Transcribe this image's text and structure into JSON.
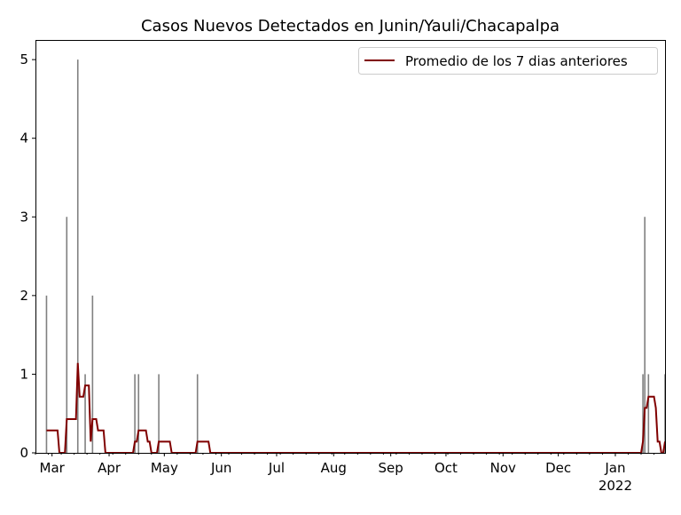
{
  "chart_data": {
    "type": "bar",
    "title": "Casos Nuevos Detectados en Junin/Yauli/Chacapalpa",
    "xlabel": "",
    "ylabel": "",
    "start_date": "2021-02-26",
    "end_date": "2022-01-28",
    "xlim": [
      "2021-02-20",
      "2022-01-28"
    ],
    "ylim": [
      0,
      5.25
    ],
    "yticks": [
      0,
      1,
      2,
      3,
      4,
      5
    ],
    "xticks": [
      {
        "date": "2021-03-01",
        "label": "Mar"
      },
      {
        "date": "2021-04-01",
        "label": "Apr"
      },
      {
        "date": "2021-05-01",
        "label": "May"
      },
      {
        "date": "2021-06-01",
        "label": "Jun"
      },
      {
        "date": "2021-07-01",
        "label": "Jul"
      },
      {
        "date": "2021-08-01",
        "label": "Aug"
      },
      {
        "date": "2021-09-01",
        "label": "Sep"
      },
      {
        "date": "2021-10-01",
        "label": "Oct"
      },
      {
        "date": "2021-11-01",
        "label": "Nov"
      },
      {
        "date": "2021-12-01",
        "label": "Dec"
      },
      {
        "date": "2022-01-01",
        "label": "Jan",
        "sublabel": "2022"
      }
    ],
    "daily_cases_nonzero": [
      {
        "date": "2021-02-26",
        "value": 2
      },
      {
        "date": "2021-03-09",
        "value": 3
      },
      {
        "date": "2021-03-15",
        "value": 5
      },
      {
        "date": "2021-03-19",
        "value": 1
      },
      {
        "date": "2021-03-23",
        "value": 2
      },
      {
        "date": "2021-04-15",
        "value": 1
      },
      {
        "date": "2021-04-17",
        "value": 1
      },
      {
        "date": "2021-04-28",
        "value": 1
      },
      {
        "date": "2021-05-19",
        "value": 1
      },
      {
        "date": "2022-01-16",
        "value": 1
      },
      {
        "date": "2022-01-17",
        "value": 3
      },
      {
        "date": "2022-01-19",
        "value": 1
      },
      {
        "date": "2022-01-28",
        "value": 1
      }
    ],
    "series": [
      {
        "name": "Promedio de los 7 dias anteriores",
        "type": "line",
        "window": 7,
        "color": "#800000"
      }
    ],
    "bar_color": "#808080",
    "legend": {
      "placement": "top-right",
      "label": "Promedio de los 7 dias anteriores"
    }
  }
}
